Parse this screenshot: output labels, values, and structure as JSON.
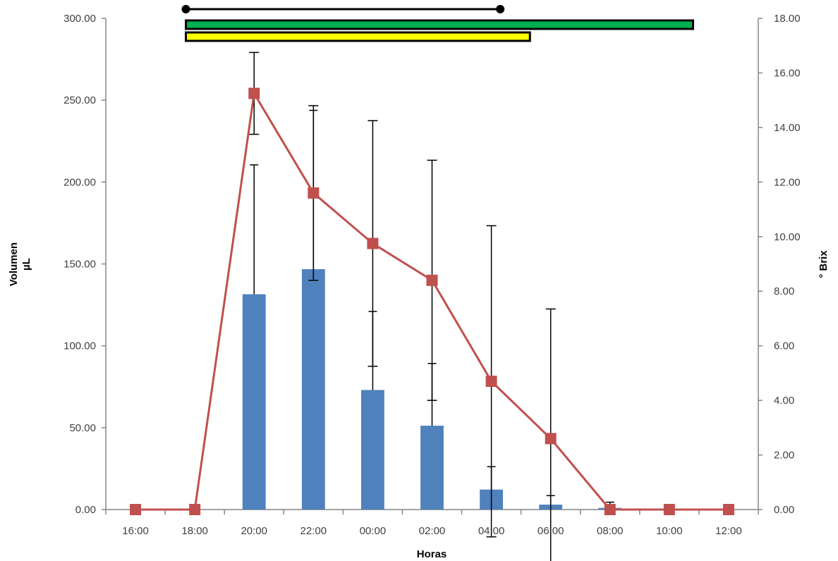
{
  "chart_data": {
    "type": "bar",
    "categories": [
      "16:00",
      "18:00",
      "20:00",
      "22:00",
      "00:00",
      "02:00",
      "04:00",
      "06:00",
      "08:00",
      "10:00",
      "12:00"
    ],
    "xlabel": "Horas",
    "ylabel_left": [
      "Volumen",
      "µL"
    ],
    "ylabel_right": "° Brix",
    "y_left": {
      "min": 0,
      "max": 300,
      "step": 50,
      "ticks": [
        "0.00",
        "50.00",
        "100.00",
        "150.00",
        "200.00",
        "250.00",
        "300.00"
      ]
    },
    "y_right": {
      "min": 0,
      "max": 18,
      "step": 2,
      "ticks": [
        "0.00",
        "2.00",
        "4.00",
        "6.00",
        "8.00",
        "10.00",
        "12.00",
        "14.00",
        "16.00",
        "18.00"
      ]
    },
    "grid": false,
    "legend": "none",
    "series": [
      {
        "kind": "bar",
        "axis": "left",
        "color": "#4F81BD",
        "values": [
          0,
          0,
          131.5,
          146.8,
          73,
          51.2,
          12.2,
          3.0,
          1.0,
          0,
          0
        ],
        "error": [
          0,
          0,
          79,
          97,
          48,
          38,
          14,
          5.5,
          3.5,
          0,
          0
        ]
      },
      {
        "kind": "line",
        "axis": "right",
        "color": "#C0504D",
        "values": [
          0,
          0,
          15.25,
          11.6,
          9.75,
          8.4,
          4.7,
          2.6,
          0,
          0,
          0
        ],
        "error": [
          0,
          0,
          1.5,
          3.2,
          4.5,
          4.4,
          5.7,
          4.75,
          0,
          0,
          0
        ]
      }
    ],
    "range_bars": [
      {
        "style": "line",
        "color": "#000000",
        "start": 1.35,
        "end": 6.65
      },
      {
        "style": "bar",
        "color": "#00B050",
        "start": 1.35,
        "end": 9.9
      },
      {
        "style": "bar",
        "color": "#FFFF00",
        "start": 1.35,
        "end": 7.15
      }
    ]
  }
}
